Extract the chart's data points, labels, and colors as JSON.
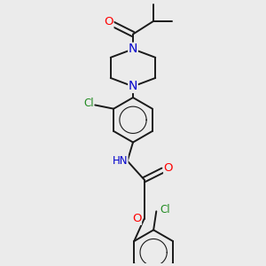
{
  "bg_color": "#ebebeb",
  "bond_color": "#1a1a1a",
  "atom_colors": {
    "O": "#ff0000",
    "N": "#0000cc",
    "Cl": "#228B22",
    "C": "#1a1a1a",
    "H": "#555555"
  },
  "line_width": 1.4,
  "font_size": 8.5,
  "xlim": [
    0,
    10
  ],
  "ylim": [
    0,
    14
  ]
}
